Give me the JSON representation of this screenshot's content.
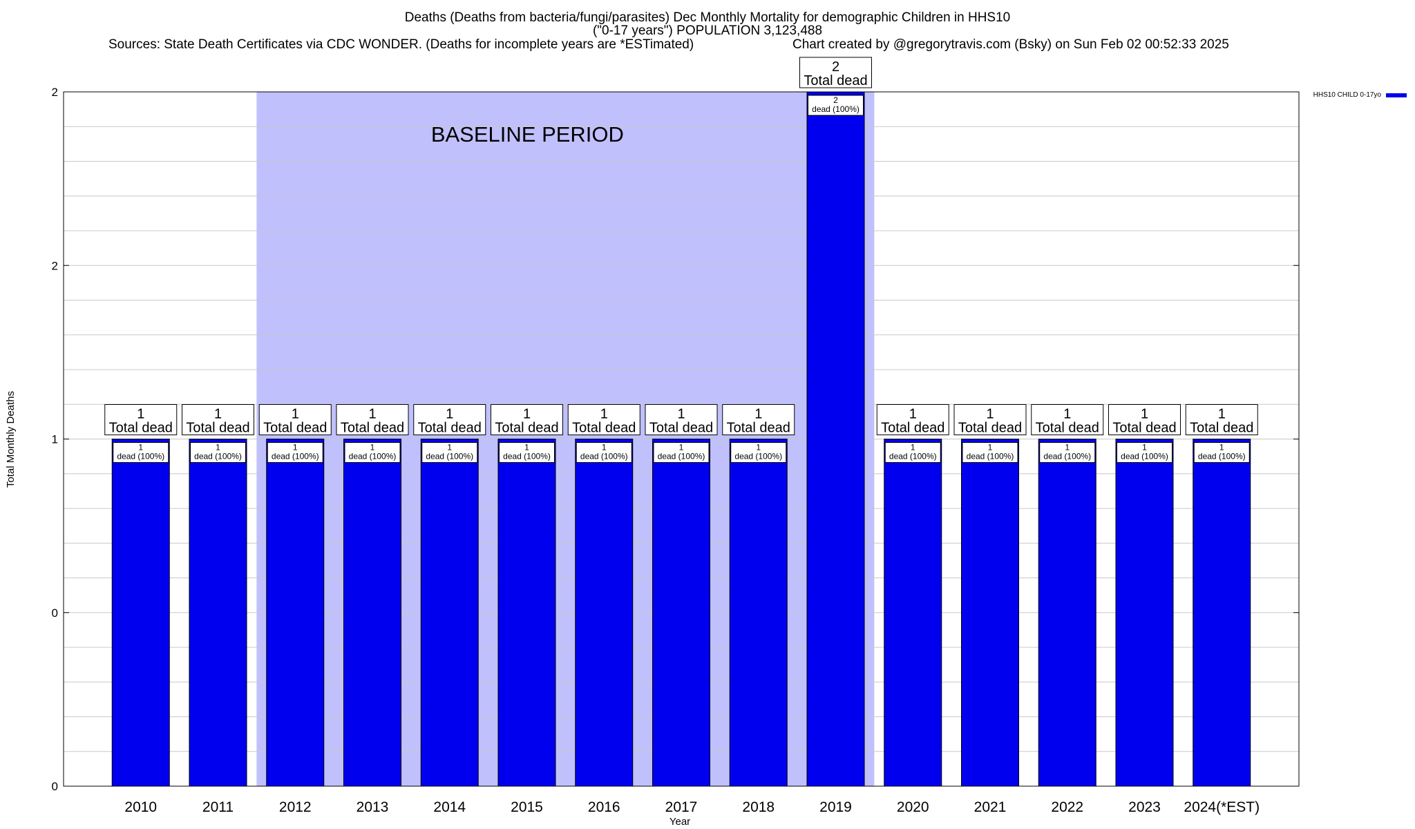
{
  "header": {
    "title_line1": "Deaths (Deaths from bacteria/fungi/parasites) Dec Monthly Mortality for demographic Children in HHS10",
    "title_line2": "(\"0-17 years\") POPULATION 3,123,488",
    "sources": "Sources: State Death Certificates via CDC WONDER. (Deaths for incomplete years are *ESTimated)",
    "credit": "Chart created by @gregorytravis.com (Bsky) on Sun Feb 02 00:52:33 2025"
  },
  "chart_data": {
    "type": "bar",
    "xlabel": "Year",
    "ylabel": "Total Monthly Deaths",
    "categories": [
      "2010",
      "2011",
      "2012",
      "2013",
      "2014",
      "2015",
      "2016",
      "2017",
      "2018",
      "2019",
      "2020",
      "2021",
      "2022",
      "2023",
      "2024(*EST)"
    ],
    "series": [
      {
        "name": "HHS10 CHILD 0-17yo",
        "values": [
          1,
          1,
          1,
          1,
          1,
          1,
          1,
          1,
          1,
          2,
          1,
          1,
          1,
          1,
          1
        ],
        "color": "#0000ee"
      }
    ],
    "total_labels": [
      "1",
      "1",
      "1",
      "1",
      "1",
      "1",
      "1",
      "1",
      "1",
      "2",
      "1",
      "1",
      "1",
      "1",
      "1"
    ],
    "total_suffix": "Total dead",
    "inner_labels": [
      "1",
      "1",
      "1",
      "1",
      "1",
      "1",
      "1",
      "1",
      "1",
      "2",
      "1",
      "1",
      "1",
      "1",
      "1"
    ],
    "inner_suffix": "dead (100%)",
    "ylim": [
      0,
      2
    ],
    "y_ticks": [
      {
        "value": 0,
        "label": "0"
      },
      {
        "value": 0.5,
        "label": "0"
      },
      {
        "value": 1,
        "label": "1"
      },
      {
        "value": 1.5,
        "label": "2"
      },
      {
        "value": 2,
        "label": "2"
      }
    ],
    "minor_grid_step": 0.1,
    "baseline_period": {
      "label": "BASELINE PERIOD",
      "from": "2012",
      "to": "2019",
      "color": "#c0c0fc"
    },
    "legend_position": "top-right",
    "grid": true
  }
}
